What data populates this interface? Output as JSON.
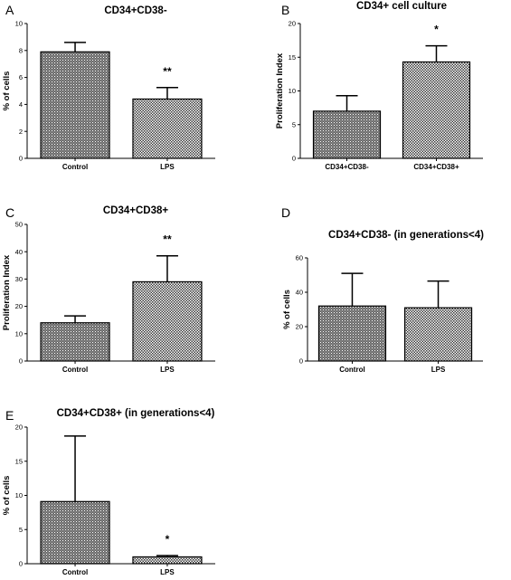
{
  "chart_data": [
    {
      "type": "bar",
      "panel": "A",
      "title": "CD34+CD38-",
      "xlabel": "",
      "ylabel": "% of cells",
      "ylim": [
        0,
        10
      ],
      "yticks": [
        "0",
        "2",
        "4",
        "6",
        "8",
        "10"
      ],
      "categories": [
        "Control",
        "LPS"
      ],
      "values": [
        7.9,
        4.4
      ],
      "errors": [
        0.7,
        0.85
      ],
      "significance": [
        "",
        "**"
      ]
    },
    {
      "type": "bar",
      "panel": "B",
      "title": "CD34+ cell culture",
      "xlabel": "",
      "ylabel": "Proliferation Index",
      "ylim": [
        0,
        20
      ],
      "yticks": [
        "0",
        "5",
        "10",
        "15",
        "20"
      ],
      "categories": [
        "CD34+CD38-",
        "CD34+CD38+"
      ],
      "values": [
        7.0,
        14.3
      ],
      "errors": [
        2.3,
        2.4
      ],
      "significance": [
        "",
        "*"
      ]
    },
    {
      "type": "bar",
      "panel": "C",
      "title": "CD34+CD38+",
      "xlabel": "",
      "ylabel": "Proliferation Index",
      "ylim": [
        0,
        50
      ],
      "yticks": [
        "0",
        "10",
        "20",
        "30",
        "40",
        "50"
      ],
      "categories": [
        "Control",
        "LPS"
      ],
      "values": [
        14.0,
        29.0
      ],
      "errors": [
        2.5,
        9.5
      ],
      "significance": [
        "",
        "**"
      ]
    },
    {
      "type": "bar",
      "panel": "D",
      "title": "CD34+CD38- (in generations<4)",
      "xlabel": "",
      "ylabel": "% of cells",
      "ylim": [
        0,
        60
      ],
      "yticks": [
        "0",
        "20",
        "40",
        "60"
      ],
      "categories": [
        "Control",
        "LPS"
      ],
      "values": [
        32.0,
        31.0
      ],
      "errors": [
        19.0,
        15.5
      ],
      "significance": [
        "",
        ""
      ]
    },
    {
      "type": "bar",
      "panel": "E",
      "title": "CD34+CD38+ (in generations<4)",
      "xlabel": "",
      "ylabel": "% of cells",
      "ylim": [
        0,
        20
      ],
      "yticks": [
        "0",
        "5",
        "10",
        "15",
        "20"
      ],
      "categories": [
        "Control",
        "LPS"
      ],
      "values": [
        9.1,
        1.0
      ],
      "errors": [
        9.6,
        0.2
      ],
      "significance": [
        "",
        "*"
      ]
    }
  ]
}
